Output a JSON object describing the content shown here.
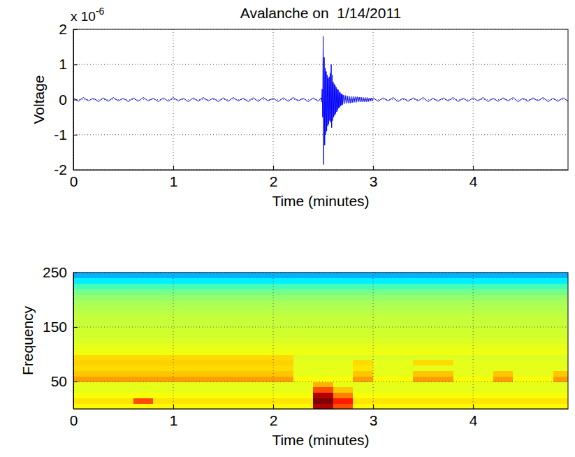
{
  "chart_data": [
    {
      "type": "line",
      "title": "Avalanche on  1/14/2011",
      "x_label": "Time (minutes)",
      "y_label": "Voltage",
      "y_multiplier": {
        "base": "x 10",
        "exponent": "-6"
      },
      "xlim": [
        0,
        4.95
      ],
      "xticks": [
        0,
        1,
        2,
        3,
        4
      ],
      "ylim": [
        -2,
        2
      ],
      "yticks": [
        -2,
        -1,
        0,
        1,
        2
      ],
      "grid": true,
      "x": [
        0,
        0.05,
        0.1,
        0.15,
        0.2,
        0.25,
        0.3,
        0.35,
        0.4,
        0.45,
        0.5,
        0.55,
        0.6,
        0.65,
        0.7,
        0.75,
        0.8,
        0.85,
        0.9,
        0.95,
        1,
        1.05,
        1.1,
        1.15,
        1.2,
        1.25,
        1.3,
        1.35,
        1.4,
        1.45,
        1.5,
        1.55,
        1.6,
        1.65,
        1.7,
        1.75,
        1.8,
        1.85,
        1.9,
        1.95,
        2,
        2.05,
        2.1,
        2.15,
        2.2,
        2.25,
        2.3,
        2.35,
        2.4,
        2.45,
        2.48,
        2.485,
        2.49,
        2.495,
        2.5,
        2.505,
        2.51,
        2.515,
        2.52,
        2.525,
        2.53,
        2.535,
        2.54,
        2.545,
        2.55,
        2.555,
        2.56,
        2.565,
        2.57,
        2.575,
        2.58,
        2.585,
        2.59,
        2.595,
        2.6,
        2.605,
        2.61,
        2.615,
        2.62,
        2.625,
        2.63,
        2.635,
        2.64,
        2.645,
        2.65,
        2.655,
        2.66,
        2.665,
        2.67,
        2.675,
        2.68,
        2.685,
        2.69,
        2.695,
        2.7,
        2.71,
        2.72,
        2.73,
        2.74,
        2.75,
        2.76,
        2.77,
        2.78,
        2.79,
        2.8,
        2.81,
        2.82,
        2.83,
        2.84,
        2.85,
        2.86,
        2.87,
        2.88,
        2.89,
        2.9,
        2.91,
        2.92,
        2.93,
        2.94,
        2.95,
        2.96,
        2.97,
        2.98,
        2.99,
        3,
        3.05,
        3.1,
        3.15,
        3.2,
        3.25,
        3.3,
        3.35,
        3.4,
        3.45,
        3.5,
        3.55,
        3.6,
        3.65,
        3.7,
        3.75,
        3.8,
        3.85,
        3.9,
        3.95,
        4,
        4.05,
        4.1,
        4.15,
        4.2,
        4.25,
        4.3,
        4.35,
        4.4,
        4.45,
        4.5,
        4.55,
        4.6,
        4.65,
        4.7,
        4.75,
        4.8,
        4.85,
        4.9,
        4.95
      ],
      "series": [
        {
          "color": "#0000ff",
          "values": [
            0.05,
            -0.05,
            0.06,
            -0.04,
            0.04,
            -0.06,
            0.05,
            -0.05,
            0.06,
            -0.04,
            0.04,
            -0.06,
            0.05,
            -0.05,
            0.06,
            -0.04,
            0.04,
            -0.06,
            0.05,
            -0.05,
            0.06,
            -0.04,
            0.04,
            -0.06,
            0.05,
            -0.05,
            0.06,
            -0.04,
            0.04,
            -0.06,
            0.05,
            -0.05,
            0.06,
            -0.04,
            0.04,
            -0.06,
            0.05,
            -0.05,
            0.06,
            -0.04,
            0.04,
            -0.06,
            0.05,
            -0.05,
            0.06,
            -0.04,
            0.04,
            -0.06,
            0.05,
            -0.05,
            0.05,
            -0.06,
            0.3,
            -0.5,
            1.8,
            -1.85,
            1.2,
            -1.3,
            0.9,
            -1.0,
            0.8,
            -0.9,
            0.7,
            -0.75,
            0.6,
            -0.7,
            0.65,
            -0.6,
            0.75,
            -0.65,
            1.0,
            -0.8,
            0.7,
            -0.6,
            0.5,
            -0.5,
            0.45,
            -0.45,
            0.4,
            -0.4,
            0.35,
            -0.35,
            0.3,
            -0.3,
            0.28,
            -0.25,
            0.22,
            -0.22,
            0.2,
            -0.18,
            0.17,
            -0.16,
            0.15,
            -0.14,
            0.13,
            -0.12,
            0.12,
            -0.11,
            0.11,
            -0.1,
            0.1,
            -0.1,
            0.09,
            -0.09,
            0.09,
            -0.08,
            0.08,
            -0.08,
            0.08,
            -0.07,
            0.07,
            -0.07,
            0.07,
            -0.07,
            0.06,
            -0.06,
            0.06,
            -0.06,
            0.06,
            -0.06,
            0.05,
            -0.05,
            0.05,
            -0.05,
            0.05,
            -0.05,
            0.05,
            -0.04,
            0.06,
            -0.06,
            0.04,
            -0.05,
            0.05,
            -0.04,
            0.06,
            -0.06,
            0.04,
            -0.05,
            0.05,
            -0.04,
            0.06,
            -0.06,
            0.04,
            -0.05,
            0.05,
            -0.04,
            0.06,
            -0.06,
            0.04,
            -0.05,
            0.05,
            -0.04,
            0.06,
            -0.06,
            0.04,
            -0.05,
            0.05,
            -0.04,
            0.06,
            -0.06,
            0.04,
            -0.05,
            0.05,
            -0.04
          ]
        }
      ]
    },
    {
      "type": "heatmap",
      "x_label": "Time (minutes)",
      "y_label": "Frequency",
      "xlim": [
        0,
        4.95
      ],
      "xticks": [
        0,
        1,
        2,
        3,
        4
      ],
      "ylim": [
        0,
        250
      ],
      "yticks": [
        50,
        150,
        250
      ],
      "grid": true,
      "color_range": [
        0,
        10
      ],
      "time_bins": [
        0,
        0.2,
        0.4,
        0.6,
        0.8,
        1,
        1.2,
        1.4,
        1.6,
        1.8,
        2,
        2.2,
        2.4,
        2.6,
        2.8,
        3,
        3.2,
        3.4,
        3.6,
        3.8,
        4,
        4.2,
        4.4,
        4.6,
        4.8,
        5
      ],
      "freq_bins": [
        0,
        10,
        20,
        30,
        40,
        50,
        60,
        70,
        80,
        90,
        100,
        110,
        120,
        130,
        140,
        150,
        160,
        170,
        180,
        190,
        200,
        210,
        220,
        230,
        240,
        250
      ],
      "cells": [
        [
          6.3,
          6.3,
          6.3,
          6.3,
          6.3,
          6.3,
          6.3,
          6.3,
          6.3,
          6.3,
          6.3,
          6.3,
          9.5,
          8,
          6.3,
          6.3,
          6.3,
          6.3,
          6.3,
          6.3,
          6.3,
          6.3,
          6.3,
          6.3,
          6.3
        ],
        [
          6.5,
          6.5,
          6.5,
          8,
          6.5,
          6.5,
          6.5,
          6.5,
          6.5,
          6.5,
          6.5,
          6.5,
          10,
          8.5,
          6.5,
          6.5,
          6.5,
          6.5,
          6.5,
          6.5,
          6.5,
          6.5,
          6.5,
          6.5,
          6.5
        ],
        [
          6.2,
          6.2,
          6.2,
          6.2,
          6.2,
          6.2,
          6.2,
          6.2,
          6.2,
          6.2,
          6.2,
          6.2,
          9.5,
          7.5,
          6.2,
          6.2,
          6.2,
          6.2,
          6.2,
          6.2,
          6.2,
          6.2,
          6.2,
          6.2,
          6.2
        ],
        [
          6,
          6,
          6,
          6,
          6,
          6,
          6,
          6,
          6,
          6,
          6,
          6,
          8,
          6.8,
          6,
          6,
          6,
          6,
          6,
          6,
          6,
          6,
          6,
          6,
          6
        ],
        [
          6,
          6,
          6,
          6,
          6,
          6,
          6,
          6,
          6,
          6,
          6,
          6,
          7,
          6,
          6,
          6,
          6,
          6,
          6,
          6,
          6,
          6,
          6,
          6,
          6
        ],
        [
          7.2,
          7.2,
          7.2,
          7.2,
          7.2,
          7.2,
          7.2,
          7.2,
          7.2,
          7.2,
          7.2,
          6.2,
          6.2,
          6.2,
          7.2,
          6.2,
          6.2,
          7.2,
          7.2,
          6.2,
          6.2,
          7.2,
          6.2,
          6.2,
          7.2
        ],
        [
          6.8,
          6.8,
          6.8,
          6.8,
          6.8,
          6.8,
          6.8,
          6.8,
          6.8,
          6.8,
          6.8,
          6,
          6,
          6,
          6.8,
          6,
          6,
          6.8,
          6.8,
          6,
          6,
          6.8,
          6,
          6,
          6.8
        ],
        [
          6.6,
          6.6,
          6.6,
          6.6,
          6.6,
          6.6,
          6.6,
          6.6,
          6.6,
          6.6,
          6.6,
          6,
          6,
          6,
          6.5,
          6,
          6,
          6,
          6,
          6,
          6,
          6,
          6,
          6,
          6
        ],
        [
          6.7,
          6.7,
          6.7,
          6.7,
          6.7,
          6.7,
          6.7,
          6.7,
          6.7,
          6.7,
          6.7,
          6,
          6,
          6,
          6.6,
          6,
          6,
          6.6,
          6.6,
          6,
          6,
          6,
          6,
          6,
          6
        ],
        [
          6.6,
          6.6,
          6.6,
          6.6,
          6.6,
          6.6,
          6.6,
          6.6,
          6.6,
          6.6,
          6.6,
          5.9,
          5.9,
          5.9,
          5.9,
          5.9,
          5.9,
          5.9,
          5.9,
          5.9,
          5.9,
          5.9,
          5.9,
          5.9,
          5.9
        ],
        [
          6.1,
          6.1,
          6.1,
          6.1,
          6.1,
          6.1,
          6.1,
          6.1,
          6.1,
          6.1,
          6.1,
          6.1,
          6.1,
          6.1,
          6.1,
          6.1,
          6.1,
          6.1,
          6.1,
          6.1,
          6.1,
          6.1,
          6.1,
          6.1,
          6.1
        ],
        [
          6,
          6,
          6,
          6,
          6,
          6,
          6,
          6,
          6,
          6,
          6,
          6,
          6,
          6,
          6,
          6,
          6,
          6,
          6,
          6,
          6,
          6,
          6,
          6,
          6
        ],
        [
          5.9,
          5.9,
          5.9,
          5.9,
          5.9,
          5.9,
          5.9,
          5.9,
          5.9,
          5.9,
          5.9,
          5.9,
          5.9,
          5.9,
          5.9,
          5.9,
          5.9,
          5.9,
          5.9,
          5.9,
          5.9,
          5.9,
          5.9,
          5.9,
          5.9
        ],
        [
          5.8,
          5.8,
          5.8,
          5.8,
          5.8,
          5.8,
          5.8,
          5.8,
          5.8,
          5.8,
          5.8,
          5.8,
          5.8,
          5.8,
          5.8,
          5.8,
          5.8,
          5.8,
          5.8,
          5.8,
          5.8,
          5.8,
          5.8,
          5.8,
          5.8
        ],
        [
          5.8,
          5.8,
          5.8,
          5.8,
          5.8,
          5.8,
          5.8,
          5.8,
          5.8,
          5.8,
          5.8,
          5.8,
          5.8,
          5.8,
          5.8,
          5.8,
          5.8,
          5.8,
          5.8,
          5.8,
          5.8,
          5.8,
          5.8,
          5.8,
          5.8
        ],
        [
          5.7,
          5.7,
          5.7,
          5.7,
          5.7,
          5.7,
          5.7,
          5.7,
          5.7,
          5.7,
          5.7,
          5.7,
          5.7,
          5.7,
          5.7,
          5.7,
          5.7,
          5.7,
          5.7,
          5.7,
          5.7,
          5.7,
          5.7,
          5.7,
          5.7
        ],
        [
          5.7,
          5.7,
          5.7,
          5.7,
          5.7,
          5.7,
          5.7,
          5.7,
          5.7,
          5.7,
          5.7,
          5.7,
          5.7,
          5.7,
          5.7,
          5.7,
          5.7,
          5.7,
          5.7,
          5.7,
          5.7,
          5.7,
          5.7,
          5.7,
          5.7
        ],
        [
          5.6,
          5.6,
          5.6,
          5.6,
          5.6,
          5.6,
          5.6,
          5.6,
          5.6,
          5.6,
          5.6,
          5.6,
          5.6,
          5.6,
          5.6,
          5.6,
          5.6,
          5.6,
          5.6,
          5.6,
          5.6,
          5.6,
          5.6,
          5.6,
          5.6
        ],
        [
          5.5,
          5.5,
          5.5,
          5.5,
          5.5,
          5.5,
          5.5,
          5.5,
          5.5,
          5.5,
          5.5,
          5.5,
          5.5,
          5.5,
          5.5,
          5.5,
          5.5,
          5.5,
          5.5,
          5.5,
          5.5,
          5.5,
          5.5,
          5.5,
          5.5
        ],
        [
          5.4,
          5.4,
          5.4,
          5.4,
          5.4,
          5.4,
          5.4,
          5.4,
          5.4,
          5.4,
          5.4,
          5.4,
          5.4,
          5.4,
          5.4,
          5.4,
          5.4,
          5.4,
          5.4,
          5.4,
          5.4,
          5.4,
          5.4,
          5.4,
          5.4
        ],
        [
          5.2,
          5.2,
          5.2,
          5.2,
          5.2,
          5.2,
          5.2,
          5.2,
          5.2,
          5.2,
          5.2,
          5.2,
          5.2,
          5.2,
          5.2,
          5.2,
          5.2,
          5.2,
          5.2,
          5.2,
          5.2,
          5.2,
          5.2,
          5.2,
          5.2
        ],
        [
          4.9,
          4.9,
          4.9,
          4.9,
          4.9,
          4.9,
          4.9,
          4.9,
          4.9,
          4.9,
          4.9,
          4.9,
          4.9,
          4.9,
          4.9,
          4.9,
          4.9,
          4.9,
          4.9,
          4.9,
          4.9,
          4.9,
          4.9,
          4.9,
          4.9
        ],
        [
          4.4,
          4.4,
          4.4,
          4.4,
          4.4,
          4.4,
          4.4,
          4.4,
          4.4,
          4.4,
          4.4,
          4.4,
          4.4,
          4.4,
          4.4,
          4.4,
          4.4,
          4.4,
          4.4,
          4.4,
          4.4,
          4.4,
          4.4,
          4.4,
          4.4
        ],
        [
          3.6,
          3.6,
          3.6,
          3.6,
          3.6,
          3.6,
          3.6,
          3.6,
          3.6,
          3.6,
          3.6,
          3.6,
          3.6,
          3.6,
          3.6,
          3.6,
          3.6,
          3.6,
          3.6,
          3.6,
          3.6,
          3.6,
          3.6,
          3.6,
          3.6
        ],
        [
          3,
          3,
          3,
          3,
          3,
          3,
          3,
          3,
          3,
          3,
          3,
          3,
          3,
          3,
          3,
          3,
          3,
          3,
          3,
          3,
          3,
          3,
          3,
          3,
          3
        ]
      ]
    }
  ]
}
